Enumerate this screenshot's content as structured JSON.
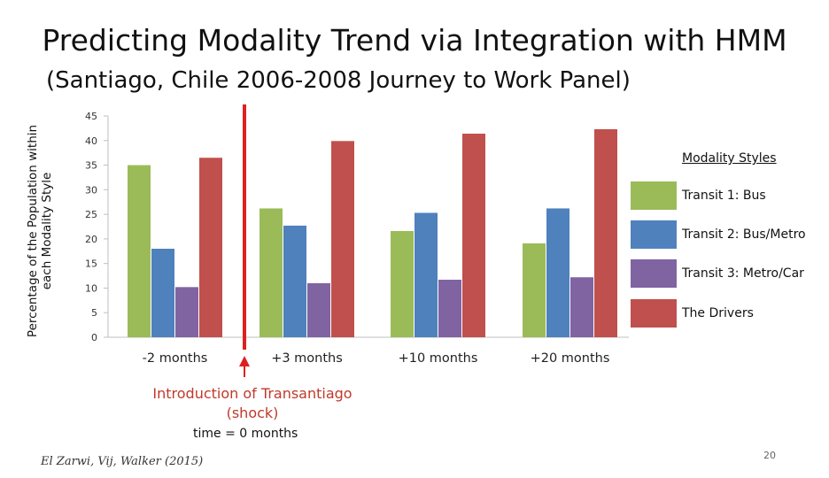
{
  "slide": {
    "title": "Predicting Modality Trend via Integration with HMM",
    "subtitle": "(Santiago, Chile 2006-2008 Journey to Work Panel)",
    "page_number": "20",
    "citation": "El Zarwi, Vij, Walker (2015)"
  },
  "annotation": {
    "shock_line1": "Introduction of Transantiago",
    "shock_line2": "(shock)",
    "time_note": "time = 0 months",
    "marker_color": "#e02020"
  },
  "legend": {
    "title": "Modality Styles"
  },
  "chart_data": {
    "type": "bar",
    "title": "Predicting Modality Trend via Integration with HMM",
    "ylabel": "Percentage of the Population within each Modality Style",
    "xlabel": "",
    "ylim": [
      0,
      45
    ],
    "yticks": [
      0,
      5,
      10,
      15,
      20,
      25,
      30,
      35,
      40,
      45
    ],
    "categories": [
      "-2 months",
      "+3 months",
      "+10 months",
      "+20 months"
    ],
    "series": [
      {
        "name": "Transit 1: Bus",
        "color": "#9bbb59",
        "values": [
          35,
          26.2,
          21.6,
          19.1
        ]
      },
      {
        "name": "Transit 2: Bus/Metro",
        "color": "#4f81bd",
        "values": [
          18,
          22.7,
          25.3,
          26.2
        ]
      },
      {
        "name": "Transit 3: Metro/Car",
        "color": "#8064a2",
        "values": [
          10.2,
          11,
          11.7,
          12.2
        ]
      },
      {
        "name": "The Drivers",
        "color": "#c0504d",
        "values": [
          36.5,
          39.9,
          41.4,
          42.3
        ]
      }
    ],
    "legend_position": "right",
    "grid": false
  }
}
